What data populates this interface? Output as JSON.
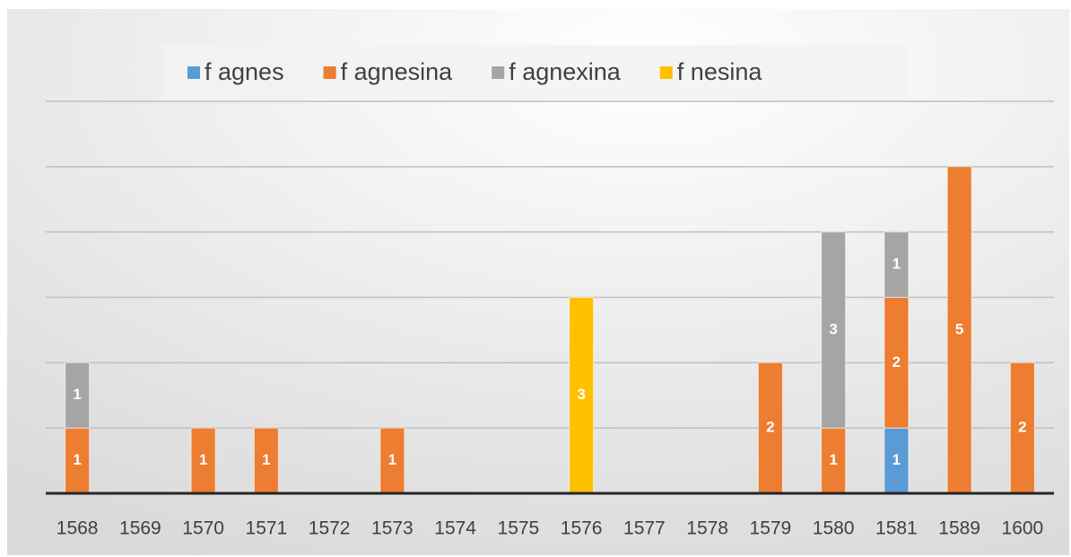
{
  "chart_data": {
    "type": "bar",
    "stacked": true,
    "categories": [
      "1568",
      "1569",
      "1570",
      "1571",
      "1572",
      "1573",
      "1574",
      "1575",
      "1576",
      "1577",
      "1578",
      "1579",
      "1580",
      "1581",
      "1589",
      "1600"
    ],
    "series": [
      {
        "name": "f agnes",
        "color": "#5b9bd5",
        "values": [
          null,
          null,
          null,
          null,
          null,
          null,
          null,
          null,
          null,
          null,
          null,
          null,
          null,
          1,
          null,
          null
        ]
      },
      {
        "name": "f agnesina",
        "color": "#ed7d31",
        "values": [
          1,
          null,
          1,
          1,
          null,
          1,
          null,
          null,
          null,
          null,
          null,
          2,
          1,
          2,
          5,
          2
        ]
      },
      {
        "name": "f agnexina",
        "color": "#a5a5a5",
        "values": [
          1,
          null,
          null,
          null,
          null,
          null,
          null,
          null,
          null,
          null,
          null,
          null,
          3,
          1,
          null,
          null
        ]
      },
      {
        "name": "f nesina",
        "color": "#ffc000",
        "values": [
          null,
          null,
          null,
          null,
          null,
          null,
          null,
          null,
          3,
          null,
          null,
          null,
          null,
          null,
          null,
          null
        ]
      }
    ],
    "ylim": [
      0,
      6
    ],
    "yticks": [
      0,
      1,
      2,
      3,
      4,
      5,
      6
    ],
    "grid": true,
    "legend": "top"
  }
}
